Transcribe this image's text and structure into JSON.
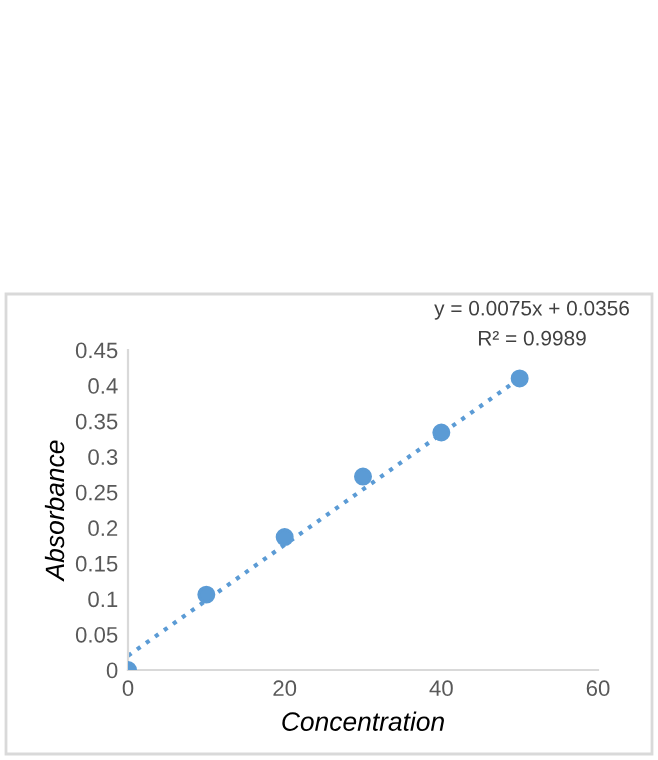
{
  "chart_data": {
    "type": "scatter",
    "xlabel": "Concentration",
    "ylabel": "Absorbance",
    "series": [
      {
        "color": "#5b9bd5",
        "x": [
          0,
          10,
          20,
          30,
          40,
          50
        ],
        "values": [
          0,
          0.106,
          0.187,
          0.272,
          0.334,
          0.41
        ],
        "marker": "circle"
      },
      {
        "type": "line",
        "color": "#5b9bd5",
        "x": [
          0,
          50
        ],
        "values": [
          0.02,
          0.41
        ],
        "line_style": "dotted",
        "marker": "none"
      }
    ],
    "annotations": [
      "y = 0.0075x + 0.0356",
      "R² = 0.9989"
    ],
    "xlim": [
      0,
      60
    ],
    "xticks": [
      0,
      20,
      40,
      60
    ],
    "ylim": [
      0,
      0.45
    ],
    "yticks": [
      0,
      0.05,
      0.1,
      0.15,
      0.2,
      0.25,
      0.3,
      0.35,
      0.4,
      0.45
    ],
    "grid": false,
    "legend": false
  }
}
